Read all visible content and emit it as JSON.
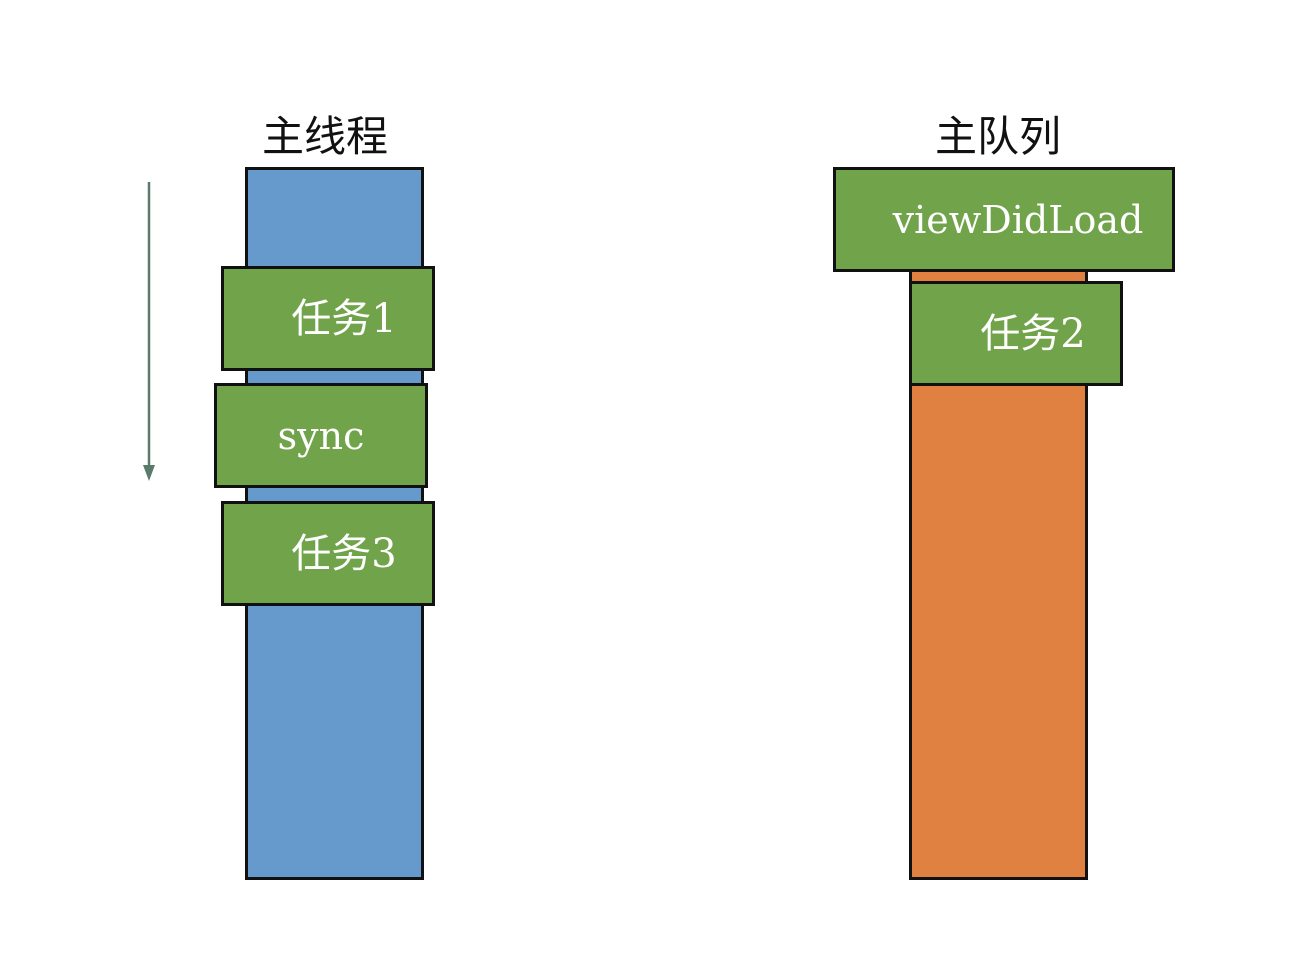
{
  "colors": {
    "main_thread": "#6699cc",
    "main_queue": "#e08142",
    "task": "#70a34a",
    "border": "#111111",
    "arrow": "#5a7a6a",
    "text": "#ffffff"
  },
  "main_thread": {
    "title": "主线程",
    "tasks": [
      {
        "label": "任务1"
      },
      {
        "label": "sync"
      },
      {
        "label": "任务3"
      }
    ]
  },
  "main_queue": {
    "title": "主队列",
    "tasks": [
      {
        "label": "viewDidLoad"
      },
      {
        "label": "任务2"
      }
    ]
  },
  "arrow_icon": "down-arrow-icon"
}
